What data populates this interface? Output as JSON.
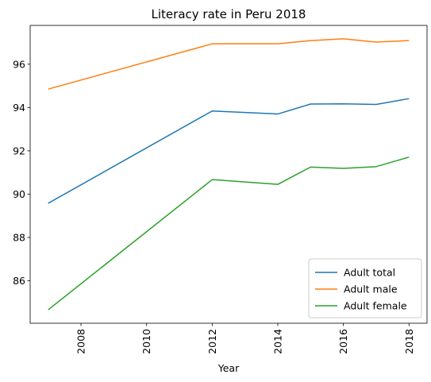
{
  "chart_data": {
    "type": "line",
    "title": "Literacy rate in Peru 2018",
    "xlabel": "Year",
    "ylabel": "",
    "x": [
      2007,
      2012,
      2014,
      2015,
      2016,
      2017,
      2018
    ],
    "series": [
      {
        "name": "Adult total",
        "color": "#1f77b4",
        "values": [
          89.58,
          93.84,
          93.7,
          94.16,
          94.17,
          94.14,
          94.41
        ]
      },
      {
        "name": "Adult male",
        "color": "#ff7f0e",
        "values": [
          94.85,
          96.94,
          96.94,
          97.09,
          97.17,
          97.02,
          97.09
        ]
      },
      {
        "name": "Adult female",
        "color": "#2ca02c",
        "values": [
          84.66,
          90.67,
          90.45,
          91.25,
          91.19,
          91.27,
          91.71
        ]
      }
    ],
    "xticks": [
      2008,
      2010,
      2012,
      2014,
      2016,
      2018
    ],
    "yticks": [
      86,
      88,
      90,
      92,
      94,
      96
    ],
    "xlim": [
      2006.45,
      2018.55
    ],
    "ylim": [
      84.04,
      97.79
    ],
    "grid": false,
    "legend_position": "lower-right"
  }
}
